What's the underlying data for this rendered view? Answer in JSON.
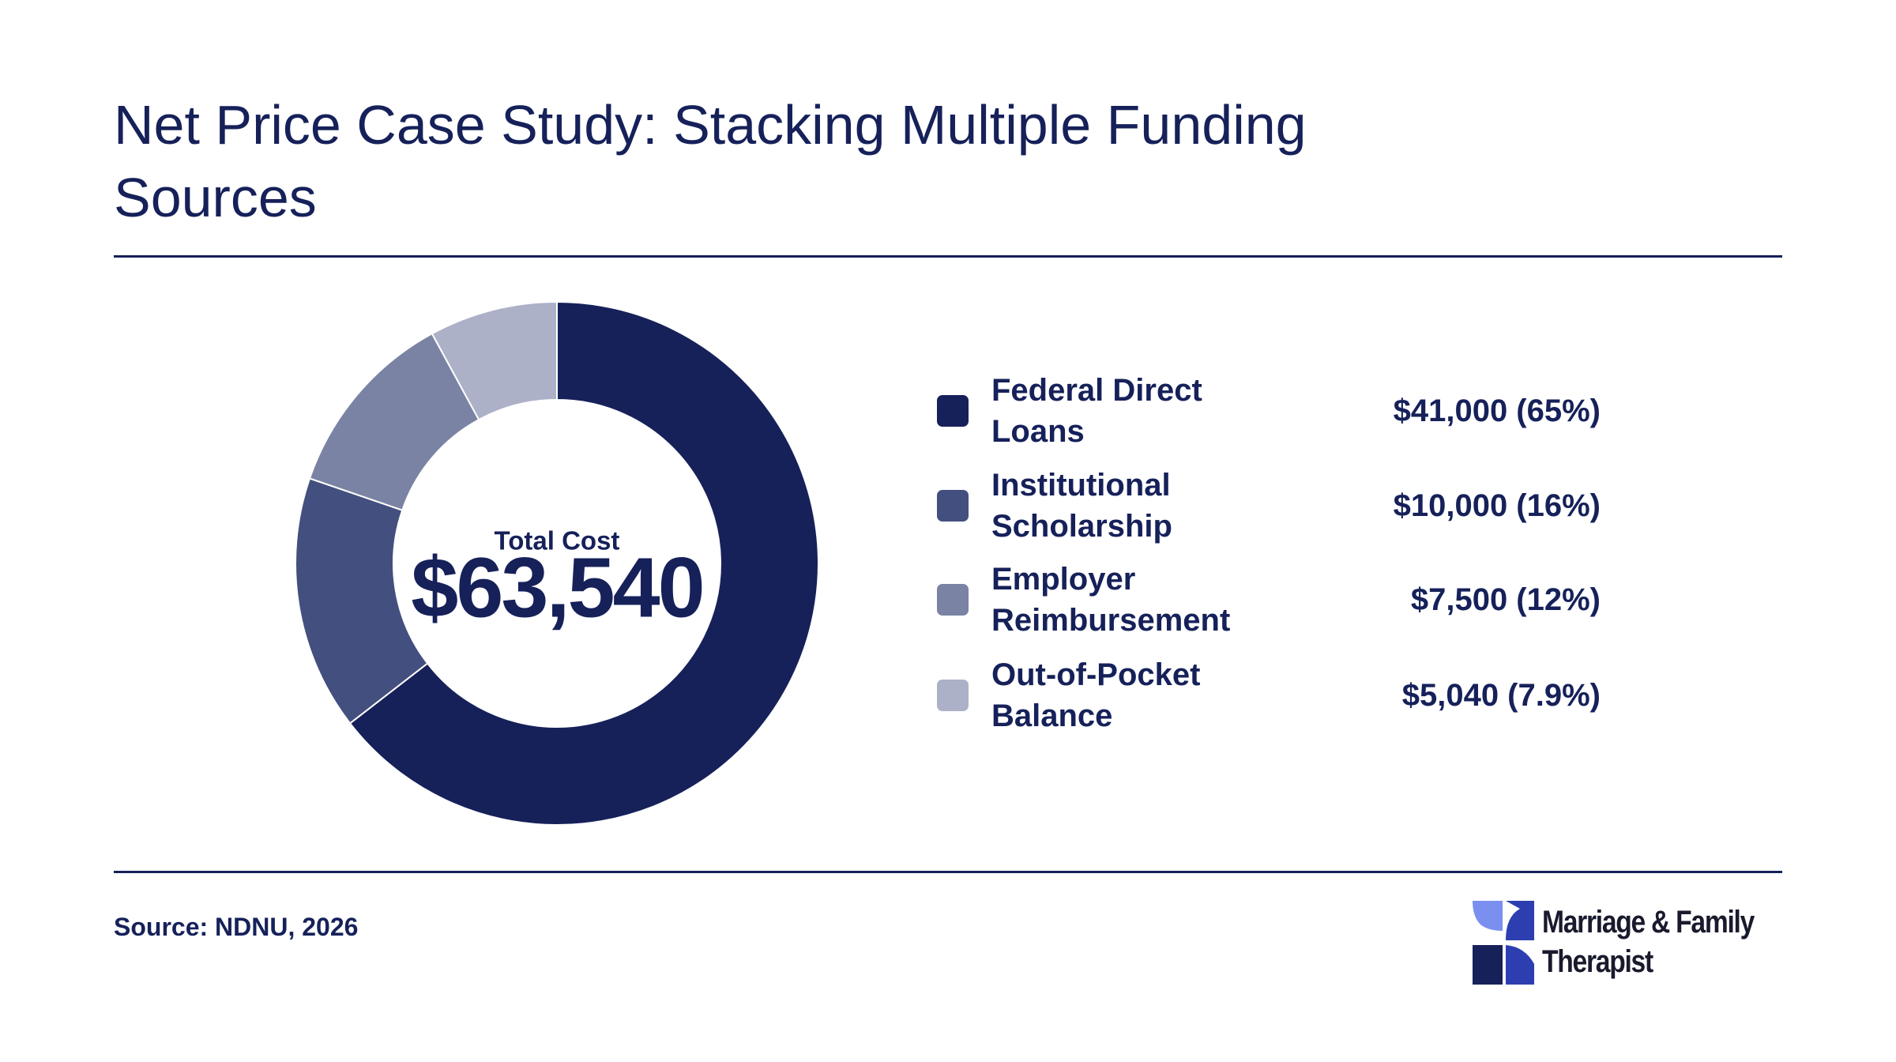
{
  "chart_data": {
    "type": "donut",
    "title": "Net Price Case Study: Stacking Multiple Funding Sources",
    "center_label": "Total Cost",
    "center_value": "$63,540",
    "categories": [
      "Federal Direct Loans",
      "Institutional Scholarship",
      "Employer Reimbursement",
      "Out-of-Pocket Balance"
    ],
    "values": [
      41000,
      10000,
      7500,
      5040
    ],
    "value_labels": [
      "$41,000 (65%)",
      "$10,000 (16%)",
      "$7,500 (12%)",
      "$5,040 (7.9%)"
    ],
    "colors": [
      "#16215a",
      "#434f7e",
      "#7a83a3",
      "#acb1c8"
    ]
  },
  "source": "Source: NDNU, 2026",
  "logo": "Marriage & Family Therapist"
}
